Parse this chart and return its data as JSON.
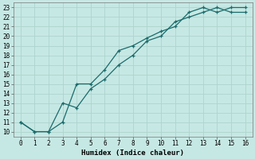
{
  "xlabel": "Humidex (Indice chaleur)",
  "ylabel": "",
  "bg_color": "#c6e8e4",
  "line_color": "#1a6b6b",
  "grid_color": "#aed4ce",
  "xlim": [
    -0.5,
    16.5
  ],
  "ylim": [
    9.5,
    23.5
  ],
  "xticks": [
    0,
    1,
    2,
    3,
    4,
    5,
    6,
    7,
    8,
    9,
    10,
    11,
    12,
    13,
    14,
    15,
    16
  ],
  "yticks": [
    10,
    11,
    12,
    13,
    14,
    15,
    16,
    17,
    18,
    19,
    20,
    21,
    22,
    23
  ],
  "line1_x": [
    0,
    1,
    2,
    3,
    4,
    5,
    6,
    7,
    8,
    9,
    10,
    11,
    12,
    13,
    14,
    15,
    16
  ],
  "line1_y": [
    11,
    10,
    10,
    11,
    15,
    15,
    16.5,
    18.5,
    19,
    19.8,
    20.5,
    21,
    22.5,
    23,
    22.5,
    23,
    23
  ],
  "line2_x": [
    0,
    1,
    2,
    3,
    4,
    5,
    6,
    7,
    8,
    9,
    10,
    11,
    12,
    13,
    14,
    15,
    16
  ],
  "line2_y": [
    11,
    10,
    10,
    13,
    12.5,
    14.5,
    15.5,
    17,
    18,
    19.5,
    20,
    21.5,
    22,
    22.5,
    23,
    22.5,
    22.5
  ],
  "tick_fontsize": 5.5,
  "xlabel_fontsize": 6.5
}
